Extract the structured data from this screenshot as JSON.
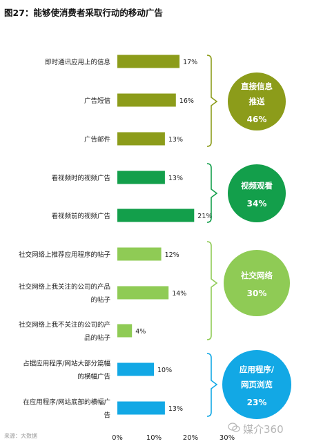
{
  "header": {
    "title": "图27：能够使消费者采取行动的移动广告"
  },
  "chart_data": {
    "type": "bar",
    "orientation": "horizontal",
    "title": "图27：能够使消费者采取行动的移动广告",
    "xlim": [
      0,
      30
    ],
    "xticks": [
      "0%",
      "10%",
      "20%",
      "30%"
    ],
    "unit": "%",
    "categories": [
      [
        "即时通讯应用上的信息"
      ],
      [
        "广告短信"
      ],
      [
        "广告邮件"
      ],
      [
        "看视频时的视频广告"
      ],
      [
        "看视频前的视频广告"
      ],
      [
        "社交网络上推荐应用程序的帖子"
      ],
      [
        "社交网络上我关注的公司的产品",
        "的帖子"
      ],
      [
        "社交网络上我不关注的公司的产",
        "品的帖子"
      ],
      [
        "占据应用程序/网站大部分篇幅",
        "的横幅广告"
      ],
      [
        "在应用程序/网站底部的横幅广",
        "告"
      ]
    ],
    "values": [
      17,
      16,
      13,
      13,
      21,
      12,
      14,
      4,
      10,
      13
    ],
    "value_labels": [
      "17%",
      "16%",
      "13%",
      "13%",
      "21%",
      "12%",
      "14%",
      "4%",
      "10%",
      "13%"
    ],
    "bar_groups": [
      0,
      0,
      0,
      1,
      1,
      2,
      2,
      2,
      3,
      3
    ],
    "groups": [
      {
        "lines": [
          "直接信息",
          "推送"
        ],
        "percent": "46%",
        "color": "#8c9c1a"
      },
      {
        "lines": [
          "视频观看"
        ],
        "percent": "34%",
        "color": "#139f4b"
      },
      {
        "lines": [
          "社交网络"
        ],
        "percent": "30%",
        "color": "#8fcb55"
      },
      {
        "lines": [
          "应用程序/",
          "网页浏览"
        ],
        "percent": "23%",
        "color": "#12a8e5"
      }
    ],
    "grid": false,
    "legend": "none"
  },
  "footer": {
    "source": "来源：大数据",
    "watermark": "媒介360"
  }
}
